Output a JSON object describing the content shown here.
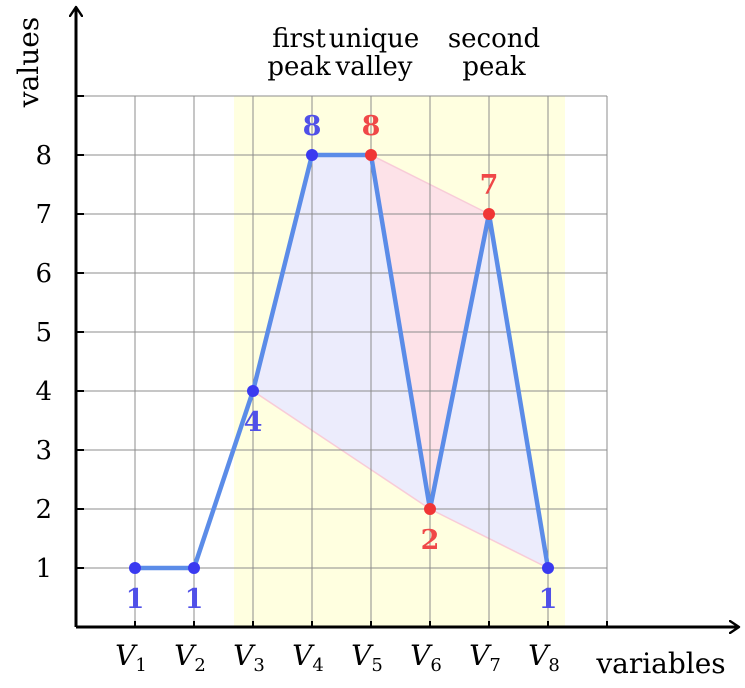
{
  "chart_data": {
    "type": "line",
    "xlabel": "variables",
    "ylabel": "values",
    "categories": [
      {
        "base": "V",
        "sub": "1"
      },
      {
        "base": "V",
        "sub": "2"
      },
      {
        "base": "V",
        "sub": "3"
      },
      {
        "base": "V",
        "sub": "4"
      },
      {
        "base": "V",
        "sub": "5"
      },
      {
        "base": "V",
        "sub": "6"
      },
      {
        "base": "V",
        "sub": "7"
      },
      {
        "base": "V",
        "sub": "8"
      }
    ],
    "values": [
      1,
      1,
      4,
      8,
      8,
      2,
      7,
      1
    ],
    "data_labels": [
      "1",
      "1",
      "4",
      "8",
      "8",
      "2",
      "7",
      "1"
    ],
    "yticks": [
      "1",
      "2",
      "3",
      "4",
      "5",
      "6",
      "7",
      "8"
    ],
    "ylim": [
      0,
      9
    ],
    "x_grid_columns": 9,
    "grid": true,
    "highlight_category_range": [
      3,
      8
    ],
    "annotations": [
      {
        "lines": [
          "first",
          "peak"
        ],
        "category": 4
      },
      {
        "lines": [
          "unique",
          "valley"
        ],
        "category": 5
      },
      {
        "lines": [
          "second",
          "peak"
        ],
        "category": 7
      }
    ],
    "highlighted_points": [
      5,
      6,
      7
    ],
    "colors": {
      "line": "#5b8ce8",
      "point": "#3a3af0",
      "point_highlight": "#f03535",
      "label": "#5050e8",
      "label_highlight": "#f04848",
      "band": "#ffffe0",
      "fill_blue": "#ececfc",
      "fill_red": "#fde2e8",
      "grid": "#8c8c8c"
    }
  }
}
